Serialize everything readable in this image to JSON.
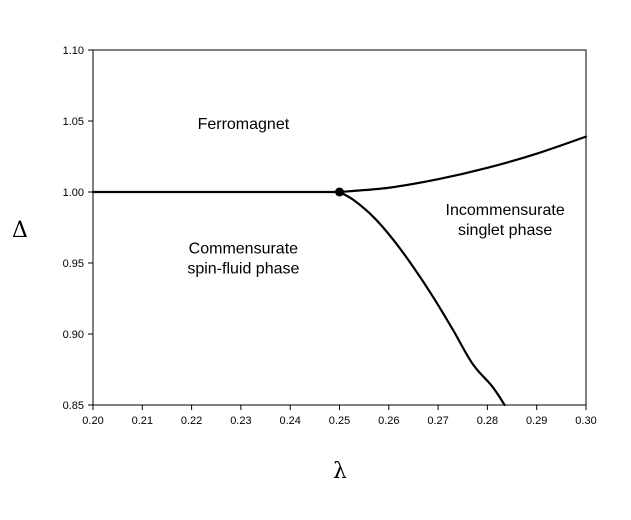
{
  "chart_data": {
    "type": "line",
    "title": "",
    "xlabel": "λ",
    "ylabel": "Δ",
    "xlim": [
      0.2,
      0.3
    ],
    "ylim": [
      0.85,
      1.1
    ],
    "x_ticks": [
      "0.20",
      "0.21",
      "0.22",
      "0.23",
      "0.24",
      "0.25",
      "0.26",
      "0.27",
      "0.28",
      "0.29",
      "0.30"
    ],
    "y_ticks": [
      "0.85",
      "0.90",
      "0.95",
      "1.00",
      "1.05",
      "1.10"
    ],
    "grid": false,
    "line_color": "#000000",
    "series": [
      {
        "x": [
          0.2,
          0.25
        ],
        "y": [
          1.0,
          1.0
        ]
      },
      {
        "x": [
          0.25,
          0.26,
          0.27,
          0.28,
          0.29,
          0.3
        ],
        "y": [
          1.0,
          1.003,
          1.009,
          1.017,
          1.027,
          1.039
        ]
      },
      {
        "x": [
          0.25,
          0.253,
          0.257,
          0.261,
          0.265,
          0.269,
          0.273,
          0.277,
          0.281,
          0.2835
        ],
        "y": [
          1.0,
          0.994,
          0.982,
          0.966,
          0.947,
          0.926,
          0.903,
          0.879,
          0.863,
          0.85
        ]
      }
    ],
    "points": [
      {
        "x": 0.25,
        "y": 1.0
      }
    ],
    "annotations": [
      {
        "lines": [
          "Ferromagnet"
        ],
        "x": 0.2305,
        "y": 1.0485
      },
      {
        "lines": [
          "Commensurate",
          "spin-fluid phase"
        ],
        "x": 0.2305,
        "y": 0.954
      },
      {
        "lines": [
          "Incommensurate",
          "singlet phase"
        ],
        "x": 0.2836,
        "y": 0.981
      }
    ]
  }
}
